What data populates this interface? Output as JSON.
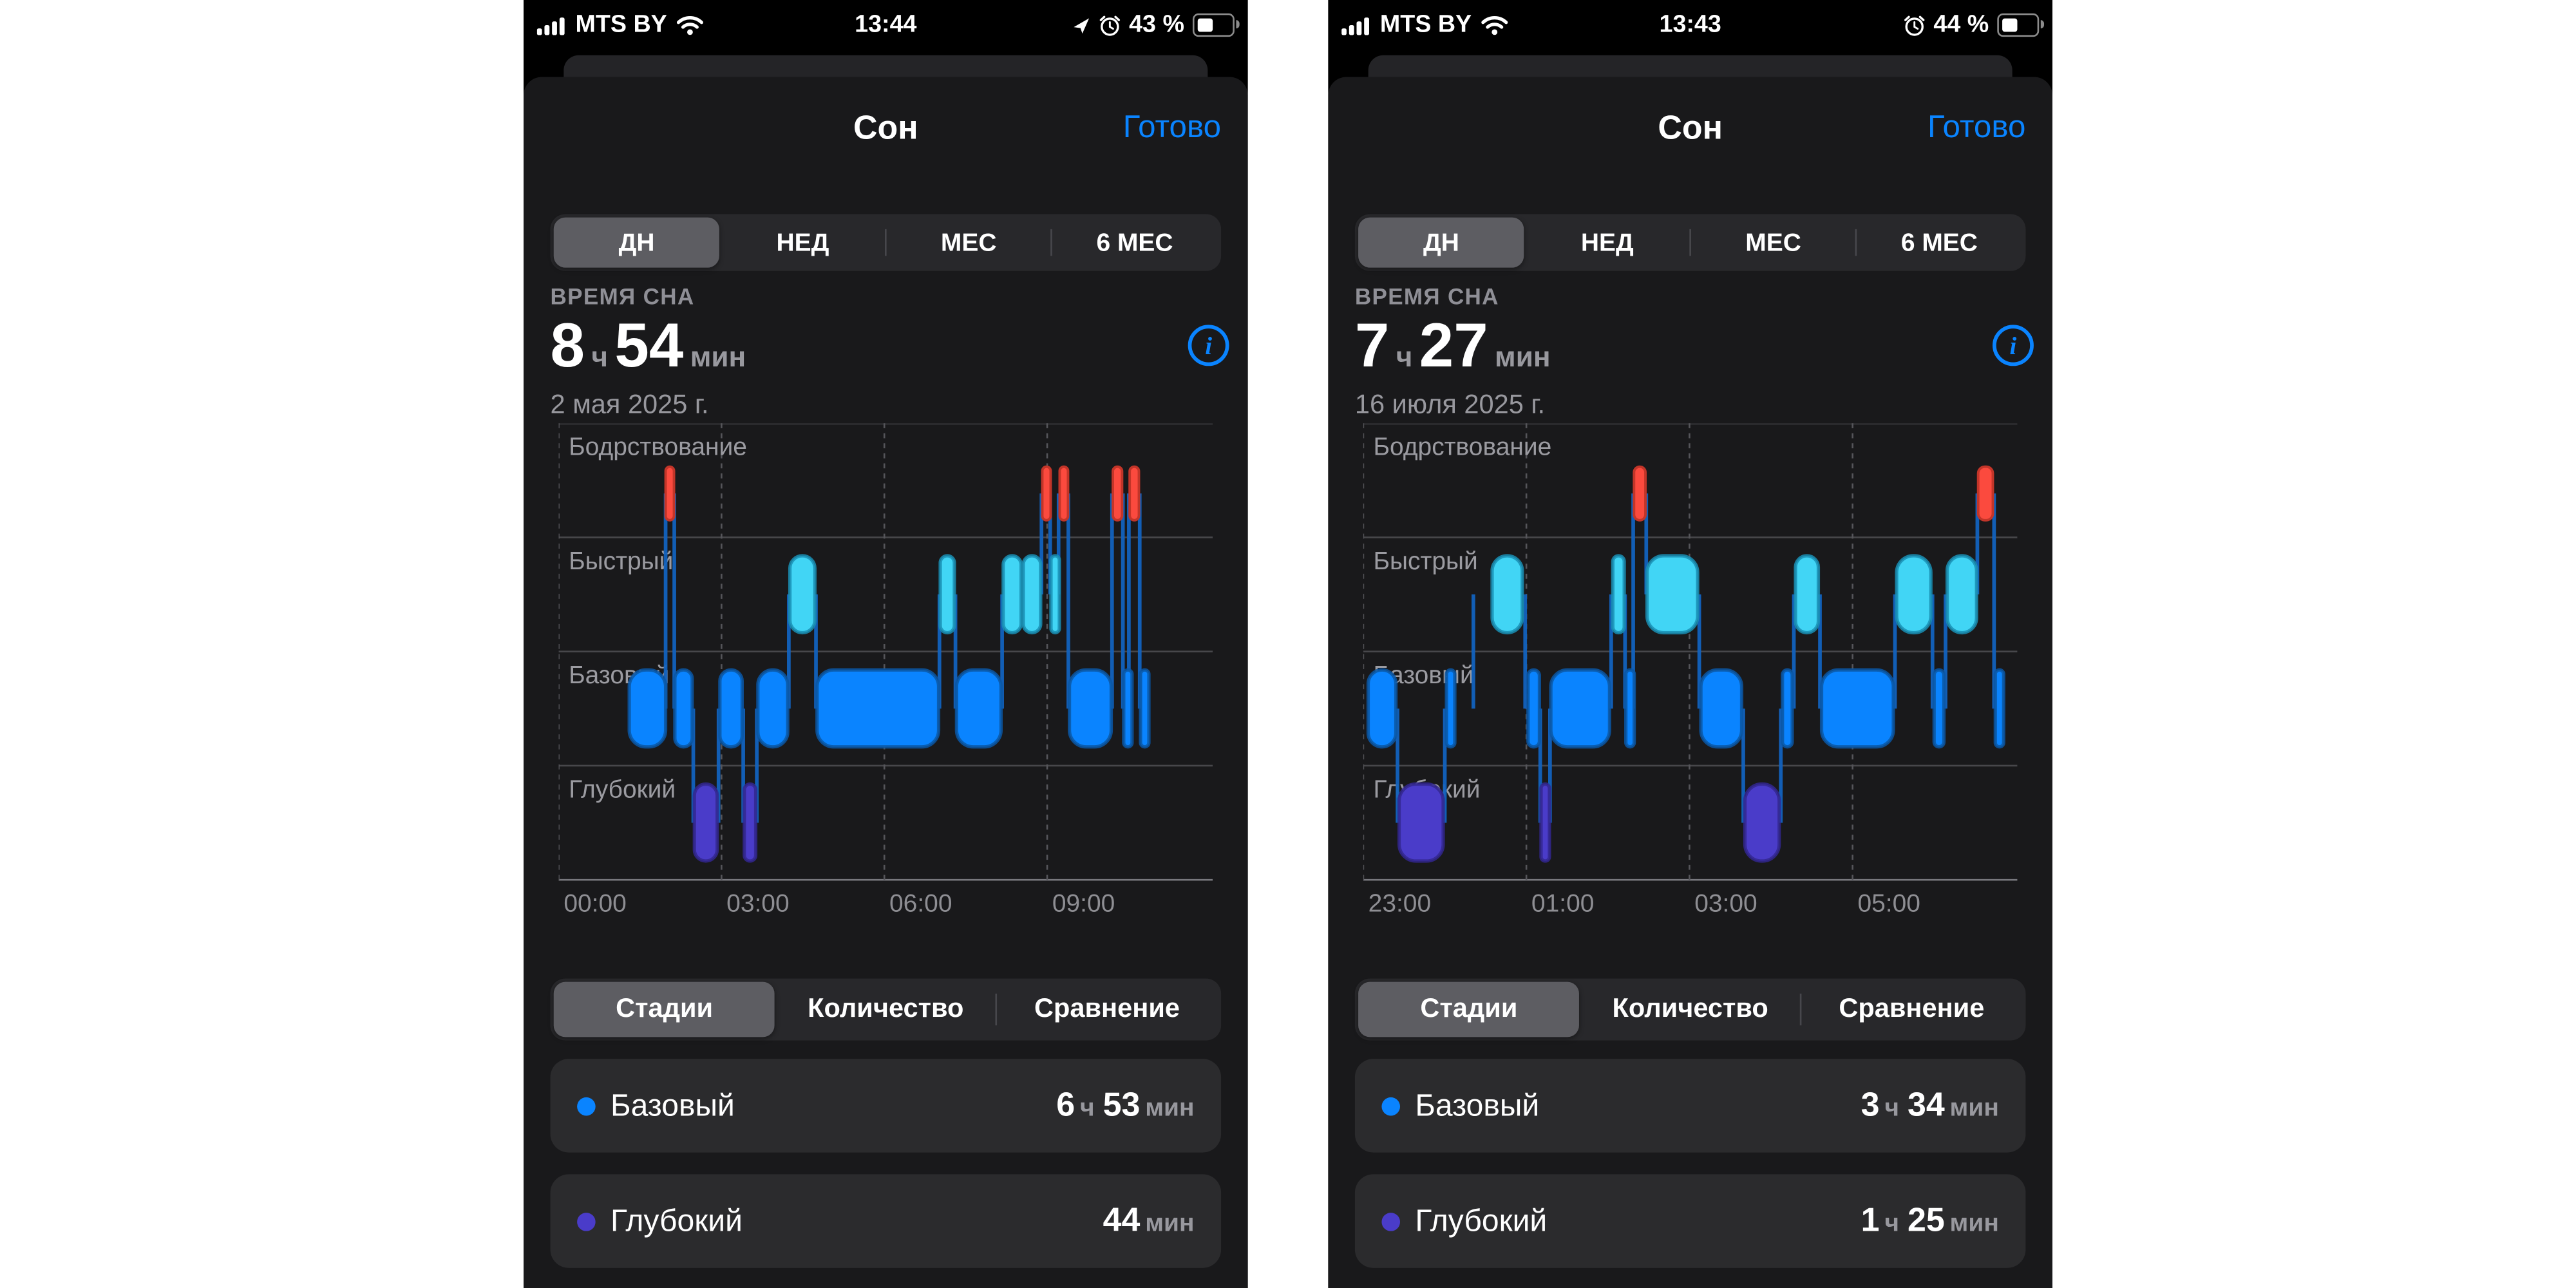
{
  "colors": {
    "accent_blue": "#0a84ff",
    "wake": "#fb4a3e",
    "rem": "#41d5f5",
    "core": "#0a84ff",
    "deep": "#4a3cc9",
    "wake_stroke": "#c23529",
    "rem_stroke": "#1a8fb4",
    "core_stroke": "#0b57a4",
    "deep_stroke": "#32278f",
    "connector": "rgba(18,98,190,0.95)",
    "grid_dash": "#55555a",
    "separator": "#6e6e73",
    "axis_text": "#8e8e93",
    "stage_text": "#9b9ba1"
  },
  "phones": [
    {
      "status_bar": {
        "carrier": "MTS BY",
        "time": "13:44",
        "battery_percent": "43 %",
        "has_location_icon": true
      },
      "nav": {
        "title": "Сон",
        "done_label": "Готово"
      },
      "range_tabs": {
        "items": [
          "ДН",
          "НЕД",
          "МЕС",
          "6 МЕС"
        ],
        "selected_index": 0
      },
      "summary": {
        "caption": "ВРЕМЯ СНА",
        "hours": "8",
        "hours_unit": "ч",
        "minutes": "54",
        "minutes_unit": "мин",
        "date": "2 мая 2025 г."
      },
      "view_tabs": {
        "items": [
          "Стадии",
          "Количество",
          "Сравнение"
        ],
        "selected_index": 0
      },
      "legend_rows": [
        {
          "label": "Базовый",
          "dot_color": "#0a84ff",
          "num1": "6",
          "unit1": "ч",
          "num2": "53",
          "unit2": "мин"
        },
        {
          "label": "Глубокий",
          "dot_color": "#4a3cc9",
          "num1": "44",
          "unit1": "мин",
          "num2": "",
          "unit2": ""
        }
      ]
    },
    {
      "status_bar": {
        "carrier": "MTS BY",
        "time": "13:43",
        "battery_percent": "44 %",
        "has_location_icon": false
      },
      "nav": {
        "title": "Сон",
        "done_label": "Готово"
      },
      "range_tabs": {
        "items": [
          "ДН",
          "НЕД",
          "МЕС",
          "6 МЕС"
        ],
        "selected_index": 0
      },
      "summary": {
        "caption": "ВРЕМЯ СНА",
        "hours": "7",
        "hours_unit": "ч",
        "minutes": "27",
        "minutes_unit": "мин",
        "date": "16 июля 2025 г."
      },
      "view_tabs": {
        "items": [
          "Стадии",
          "Количество",
          "Сравнение"
        ],
        "selected_index": 0
      },
      "legend_rows": [
        {
          "label": "Базовый",
          "dot_color": "#0a84ff",
          "num1": "3",
          "unit1": "ч",
          "num2": "34",
          "unit2": "мин"
        },
        {
          "label": "Глубокий",
          "dot_color": "#4a3cc9",
          "num1": "1",
          "unit1": "ч",
          "num2": "25",
          "unit2": "мин"
        }
      ]
    }
  ],
  "chart_data": [
    {
      "type": "hypnogram-timeline",
      "date": "2 мая 2025 г.",
      "total_sleep": "8 ч 54 мин",
      "stages": [
        "Бодрствование",
        "Быстрый",
        "Базовый",
        "Глубокий"
      ],
      "x_domain_hours": [
        0,
        12.05
      ],
      "x_ticks": [
        {
          "hour": 0,
          "label": "00:00"
        },
        {
          "hour": 3,
          "label": "03:00"
        },
        {
          "hour": 6,
          "label": "06:00"
        },
        {
          "hour": 9,
          "label": "09:00"
        }
      ],
      "segments": [
        {
          "stage": "core",
          "start": 1.3,
          "end": 1.97
        },
        {
          "stage": "wake",
          "start": 1.97,
          "end": 2.12
        },
        {
          "stage": "core",
          "start": 2.14,
          "end": 2.46
        },
        {
          "stage": "deep",
          "start": 2.5,
          "end": 2.92
        },
        {
          "stage": "core",
          "start": 2.97,
          "end": 3.38
        },
        {
          "stage": "deep",
          "start": 3.42,
          "end": 3.63
        },
        {
          "stage": "core",
          "start": 3.67,
          "end": 4.22
        },
        {
          "stage": "rem",
          "start": 4.26,
          "end": 4.72
        },
        {
          "stage": "core",
          "start": 4.76,
          "end": 7.0
        },
        {
          "stage": "rem",
          "start": 7.03,
          "end": 7.29
        },
        {
          "stage": "core",
          "start": 7.33,
          "end": 8.15
        },
        {
          "stage": "rem",
          "start": 8.19,
          "end": 8.52
        },
        {
          "stage": "rem",
          "start": 8.56,
          "end": 8.88
        },
        {
          "stage": "wake",
          "start": 8.91,
          "end": 9.04
        },
        {
          "stage": "rem",
          "start": 9.07,
          "end": 9.19
        },
        {
          "stage": "wake",
          "start": 9.23,
          "end": 9.37
        },
        {
          "stage": "core",
          "start": 9.41,
          "end": 10.18
        },
        {
          "stage": "wake",
          "start": 10.21,
          "end": 10.38
        },
        {
          "stage": "core",
          "start": 10.41,
          "end": 10.49
        },
        {
          "stage": "wake",
          "start": 10.52,
          "end": 10.69
        },
        {
          "stage": "core",
          "start": 10.72,
          "end": 10.8
        }
      ]
    },
    {
      "type": "hypnogram-timeline",
      "date": "16 июля 2025 г.",
      "total_sleep": "7 ч 27 мин",
      "stages": [
        "Бодрствование",
        "Быстрый",
        "Базовый",
        "Глубокий"
      ],
      "x_domain_hours": [
        23,
        31.02
      ],
      "x_ticks": [
        {
          "hour": 23,
          "label": "23:00"
        },
        {
          "hour": 25,
          "label": "01:00"
        },
        {
          "hour": 27,
          "label": "03:00"
        },
        {
          "hour": 29,
          "label": "05:00"
        }
      ],
      "segments": [
        {
          "stage": "core",
          "start": 23.06,
          "end": 23.4
        },
        {
          "stage": "deep",
          "start": 23.44,
          "end": 23.98
        },
        {
          "stage": "core",
          "start": 24.02,
          "end": 24.12
        },
        {
          "stage": "rem",
          "start": 24.58,
          "end": 24.95
        },
        {
          "stage": "core",
          "start": 25.02,
          "end": 25.16
        },
        {
          "stage": "deep",
          "start": 25.18,
          "end": 25.28
        },
        {
          "stage": "core",
          "start": 25.3,
          "end": 26.02
        },
        {
          "stage": "rem",
          "start": 26.06,
          "end": 26.2
        },
        {
          "stage": "core",
          "start": 26.22,
          "end": 26.3
        },
        {
          "stage": "wake",
          "start": 26.32,
          "end": 26.46
        },
        {
          "stage": "rem",
          "start": 26.48,
          "end": 27.1
        },
        {
          "stage": "core",
          "start": 27.14,
          "end": 27.64
        },
        {
          "stage": "deep",
          "start": 27.68,
          "end": 28.1
        },
        {
          "stage": "core",
          "start": 28.14,
          "end": 28.26
        },
        {
          "stage": "rem",
          "start": 28.3,
          "end": 28.58
        },
        {
          "stage": "core",
          "start": 28.62,
          "end": 29.5
        },
        {
          "stage": "rem",
          "start": 29.54,
          "end": 29.96
        },
        {
          "stage": "core",
          "start": 30.0,
          "end": 30.12
        },
        {
          "stage": "rem",
          "start": 30.16,
          "end": 30.52
        },
        {
          "stage": "wake",
          "start": 30.54,
          "end": 30.72
        },
        {
          "stage": "core",
          "start": 30.75,
          "end": 30.85
        }
      ]
    }
  ]
}
